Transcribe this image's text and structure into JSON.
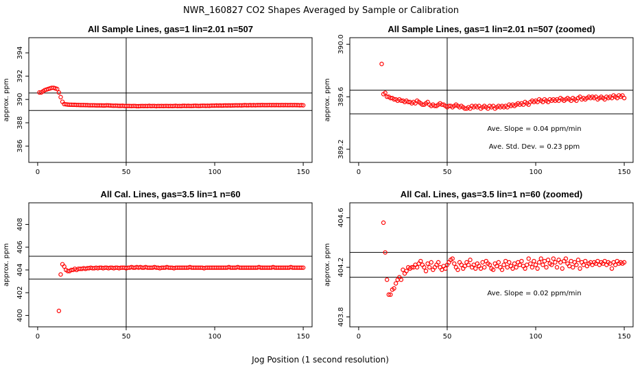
{
  "title": "NWR_160827  CO2 Shapes Averaged by Sample or Calibration",
  "xlabel": "Jog Position (1 second resolution)",
  "colors": {
    "points": "#ff0000",
    "axes": "#000000"
  },
  "chart_data": [
    {
      "type": "scatter",
      "title": "All Sample Lines, gas=1 lin=2.01 n=507",
      "ylabel": "approx. ppm",
      "xlim": [
        -5,
        155
      ],
      "ylim": [
        384.6,
        395.3
      ],
      "xticks": [
        0,
        50,
        100,
        150
      ],
      "yticks": [
        386,
        388,
        390,
        392,
        394
      ],
      "vline": 50,
      "hlines": [
        390.55,
        389.05
      ],
      "annotations": [],
      "points": {
        "x_start": 1,
        "x_end": 150,
        "y": [
          390.6,
          390.6,
          390.7,
          390.8,
          390.85,
          390.9,
          390.95,
          391.0,
          391.0,
          390.95,
          390.9,
          390.6,
          390.2,
          389.8,
          389.6,
          389.58,
          389.56,
          389.55,
          389.55,
          389.54,
          389.54,
          389.53,
          389.53,
          389.52,
          389.52,
          389.52,
          389.51,
          389.51,
          389.5,
          389.5,
          389.5,
          389.5,
          389.49,
          389.49,
          389.49,
          389.49,
          389.48,
          389.48,
          389.5,
          389.49,
          389.48,
          389.47,
          389.46,
          389.47,
          389.46,
          389.45,
          389.45,
          389.46,
          389.44,
          389.44,
          389.44,
          389.44,
          389.43,
          389.44,
          389.44,
          389.42,
          389.42,
          389.43,
          389.44,
          389.43,
          389.44,
          389.43,
          389.45,
          389.43,
          389.44,
          389.44,
          389.42,
          389.44,
          389.43,
          389.44,
          389.43,
          389.44,
          389.44,
          389.43,
          389.44,
          389.43,
          389.44,
          389.45,
          389.43,
          389.44,
          389.43,
          389.45,
          389.45,
          389.44,
          389.45,
          389.44,
          389.44,
          389.45,
          389.46,
          389.45,
          389.44,
          389.45,
          389.46,
          389.46,
          389.45,
          389.46,
          389.45,
          389.47,
          389.47,
          389.47,
          389.48,
          389.47,
          389.48,
          389.47,
          389.48,
          389.49,
          389.48,
          389.49,
          389.48,
          389.49,
          389.49,
          389.5,
          389.49,
          389.5,
          389.49,
          389.5,
          389.51,
          389.5,
          389.5,
          389.51,
          389.5,
          389.51,
          389.5,
          389.51,
          389.51,
          389.51,
          389.52,
          389.51,
          389.51,
          389.51,
          389.52,
          389.51,
          389.52,
          389.51,
          389.52,
          389.51,
          389.51,
          389.52,
          389.51,
          389.52,
          389.51,
          389.51,
          389.52,
          389.51,
          389.52,
          389.51,
          389.51,
          389.5,
          389.51,
          389.5
        ]
      }
    },
    {
      "type": "scatter",
      "title": "All Sample Lines, gas=1 lin=2.01 n=507 (zoomed)",
      "ylabel": "approx. ppm",
      "xlim": [
        -5,
        155
      ],
      "ylim": [
        389.1,
        390.05
      ],
      "xticks": [
        0,
        50,
        100,
        150
      ],
      "yticks": [
        389.2,
        389.6,
        390.0
      ],
      "vline": 50,
      "hlines": [
        389.65,
        389.47
      ],
      "annotations": [
        "Ave. Slope =  0.04  ppm/min",
        "Ave. Std. Dev. =  0.23  ppm"
      ],
      "points": {
        "x_start": 13,
        "x_end": 150,
        "y": [
          389.85,
          389.62,
          389.63,
          389.6,
          389.6,
          389.59,
          389.59,
          389.58,
          389.58,
          389.57,
          389.58,
          389.57,
          389.57,
          389.56,
          389.57,
          389.56,
          389.56,
          389.55,
          389.56,
          389.55,
          389.57,
          389.56,
          389.55,
          389.54,
          389.54,
          389.55,
          389.56,
          389.54,
          389.53,
          389.54,
          389.53,
          389.53,
          389.54,
          389.55,
          389.54,
          389.54,
          389.53,
          389.52,
          389.53,
          389.53,
          389.52,
          389.53,
          389.54,
          389.53,
          389.52,
          389.53,
          389.52,
          389.51,
          389.51,
          389.52,
          389.51,
          389.53,
          389.52,
          389.53,
          389.52,
          389.53,
          389.51,
          389.52,
          389.53,
          389.52,
          389.51,
          389.53,
          389.52,
          389.53,
          389.51,
          389.52,
          389.53,
          389.52,
          389.53,
          389.52,
          389.53,
          389.52,
          389.54,
          389.53,
          389.54,
          389.53,
          389.54,
          389.55,
          389.54,
          389.55,
          389.54,
          389.56,
          389.55,
          389.54,
          389.56,
          389.57,
          389.56,
          389.57,
          389.56,
          389.58,
          389.57,
          389.56,
          389.58,
          389.57,
          389.56,
          389.58,
          389.57,
          389.58,
          389.57,
          389.58,
          389.57,
          389.59,
          389.58,
          389.57,
          389.58,
          389.59,
          389.58,
          389.57,
          389.59,
          389.58,
          389.57,
          389.59,
          389.6,
          389.58,
          389.59,
          389.58,
          389.59,
          389.6,
          389.59,
          389.6,
          389.59,
          389.6,
          389.58,
          389.59,
          389.6,
          389.59,
          389.58,
          389.6,
          389.59,
          389.6,
          389.59,
          389.61,
          389.6,
          389.59,
          389.61,
          389.6,
          389.61,
          389.59
        ]
      }
    },
    {
      "type": "scatter",
      "title": "All Cal. Lines, gas=3.5 lin=1 n=60",
      "ylabel": "approx. ppm",
      "xlim": [
        -5,
        155
      ],
      "ylim": [
        399.0,
        409.9
      ],
      "xticks": [
        0,
        50,
        100,
        150
      ],
      "yticks": [
        400,
        402,
        404,
        406,
        408
      ],
      "vline": 50,
      "hlines": [
        405.2,
        403.2
      ],
      "annotations": [],
      "points": {
        "x_start": 12,
        "x_end": 150,
        "y": [
          400.4,
          403.6,
          404.5,
          404.3,
          404.0,
          403.9,
          403.9,
          404.0,
          404.0,
          404.1,
          404.0,
          404.1,
          404.1,
          404.1,
          404.15,
          404.1,
          404.15,
          404.15,
          404.2,
          404.15,
          404.15,
          404.2,
          404.15,
          404.2,
          404.2,
          404.15,
          404.2,
          404.2,
          404.15,
          404.2,
          404.2,
          404.15,
          404.2,
          404.2,
          404.15,
          404.2,
          404.2,
          404.2,
          404.15,
          404.2,
          404.2,
          404.25,
          404.2,
          404.2,
          404.25,
          404.2,
          404.25,
          404.2,
          404.2,
          404.25,
          404.2,
          404.2,
          404.2,
          404.2,
          404.25,
          404.2,
          404.2,
          404.15,
          404.2,
          404.2,
          404.2,
          404.25,
          404.2,
          404.2,
          404.2,
          404.15,
          404.2,
          404.2,
          404.2,
          404.2,
          404.2,
          404.2,
          404.2,
          404.2,
          404.25,
          404.2,
          404.2,
          404.2,
          404.2,
          404.2,
          404.2,
          404.2,
          404.15,
          404.2,
          404.2,
          404.2,
          404.2,
          404.2,
          404.2,
          404.2,
          404.2,
          404.2,
          404.2,
          404.2,
          404.2,
          404.2,
          404.25,
          404.2,
          404.2,
          404.2,
          404.2,
          404.25,
          404.2,
          404.2,
          404.2,
          404.2,
          404.2,
          404.2,
          404.2,
          404.2,
          404.2,
          404.2,
          404.2,
          404.25,
          404.2,
          404.2,
          404.2,
          404.2,
          404.2,
          404.2,
          404.2,
          404.25,
          404.2,
          404.2,
          404.2,
          404.2,
          404.2,
          404.2,
          404.2,
          404.2,
          404.2,
          404.25,
          404.2,
          404.2,
          404.2,
          404.2,
          404.2,
          404.2,
          404.2
        ]
      }
    },
    {
      "type": "scatter",
      "title": "All Cal. Lines, gas=3.5 lin=1 n=60 (zoomed)",
      "ylabel": "approx. ppm",
      "xlim": [
        -5,
        155
      ],
      "ylim": [
        403.72,
        404.72
      ],
      "xticks": [
        0,
        50,
        100,
        150
      ],
      "yticks": [
        403.8,
        404.2,
        404.6
      ],
      "vline": 50,
      "hlines": [
        404.32,
        404.12
      ],
      "annotations": [
        "Ave. Slope =  0.02  ppm/min"
      ],
      "points": {
        "x_start": 14,
        "x_end": 150,
        "y": [
          404.56,
          404.32,
          404.1,
          403.98,
          403.98,
          404.02,
          404.03,
          404.07,
          404.1,
          404.12,
          404.1,
          404.18,
          404.15,
          404.17,
          404.2,
          404.19,
          404.2,
          404.2,
          404.22,
          404.2,
          404.23,
          404.25,
          404.22,
          404.2,
          404.17,
          404.23,
          404.2,
          404.24,
          404.18,
          404.2,
          404.22,
          404.24,
          404.2,
          404.18,
          404.21,
          404.19,
          404.22,
          404.24,
          404.26,
          404.27,
          404.23,
          404.2,
          404.18,
          404.24,
          404.22,
          404.19,
          404.21,
          404.24,
          404.22,
          404.26,
          404.2,
          404.22,
          404.19,
          404.23,
          404.21,
          404.19,
          404.24,
          404.2,
          404.25,
          404.23,
          404.22,
          404.19,
          404.18,
          404.23,
          404.21,
          404.24,
          404.2,
          404.18,
          404.22,
          404.25,
          404.2,
          404.24,
          404.21,
          404.19,
          404.23,
          404.2,
          404.24,
          404.22,
          404.25,
          404.21,
          404.19,
          404.22,
          404.27,
          404.23,
          404.2,
          404.25,
          404.22,
          404.19,
          404.24,
          404.27,
          404.22,
          404.25,
          404.2,
          404.26,
          404.23,
          404.22,
          404.27,
          404.24,
          404.2,
          404.26,
          404.24,
          404.19,
          404.25,
          404.27,
          404.23,
          404.21,
          404.25,
          404.2,
          404.24,
          404.22,
          404.26,
          404.19,
          404.24,
          404.22,
          404.25,
          404.21,
          404.23,
          404.24,
          404.22,
          404.24,
          404.23,
          404.25,
          404.22,
          404.24,
          404.23,
          404.25,
          404.22,
          404.24,
          404.23,
          404.19,
          404.24,
          404.22,
          404.25,
          404.23,
          404.24,
          404.23,
          404.24
        ]
      }
    }
  ]
}
